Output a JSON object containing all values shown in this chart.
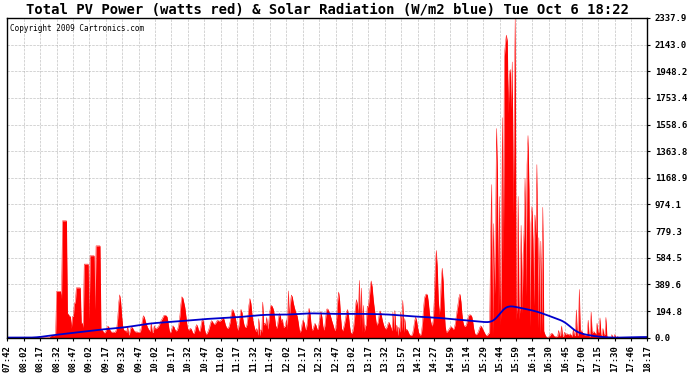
{
  "title": "Total PV Power (watts red) & Solar Radiation (W/m2 blue) Tue Oct 6 18:22",
  "copyright": "Copyright 2009 Cartronics.com",
  "ylabel_right_values": [
    0.0,
    194.8,
    389.6,
    584.5,
    779.3,
    974.1,
    1168.9,
    1363.8,
    1558.6,
    1753.4,
    1948.2,
    2143.0,
    2337.9
  ],
  "ymax": 2337.9,
  "ymin": 0.0,
  "bg_color": "#ffffff",
  "plot_bg_color": "#ffffff",
  "grid_color": "#aaaaaa",
  "red_fill": "#ff0000",
  "blue_line": "#0000cc",
  "title_fontsize": 10,
  "tick_fontsize": 6.5,
  "x_tick_labels": [
    "07:42",
    "08:02",
    "08:17",
    "08:32",
    "08:47",
    "09:02",
    "09:17",
    "09:32",
    "09:47",
    "10:02",
    "10:17",
    "10:32",
    "10:47",
    "11:02",
    "11:17",
    "11:32",
    "11:47",
    "12:02",
    "12:17",
    "12:32",
    "12:47",
    "13:02",
    "13:17",
    "13:32",
    "13:57",
    "14:12",
    "14:27",
    "14:59",
    "15:14",
    "15:29",
    "15:44",
    "15:59",
    "16:14",
    "16:30",
    "16:45",
    "17:00",
    "17:15",
    "17:30",
    "17:46",
    "18:17"
  ]
}
